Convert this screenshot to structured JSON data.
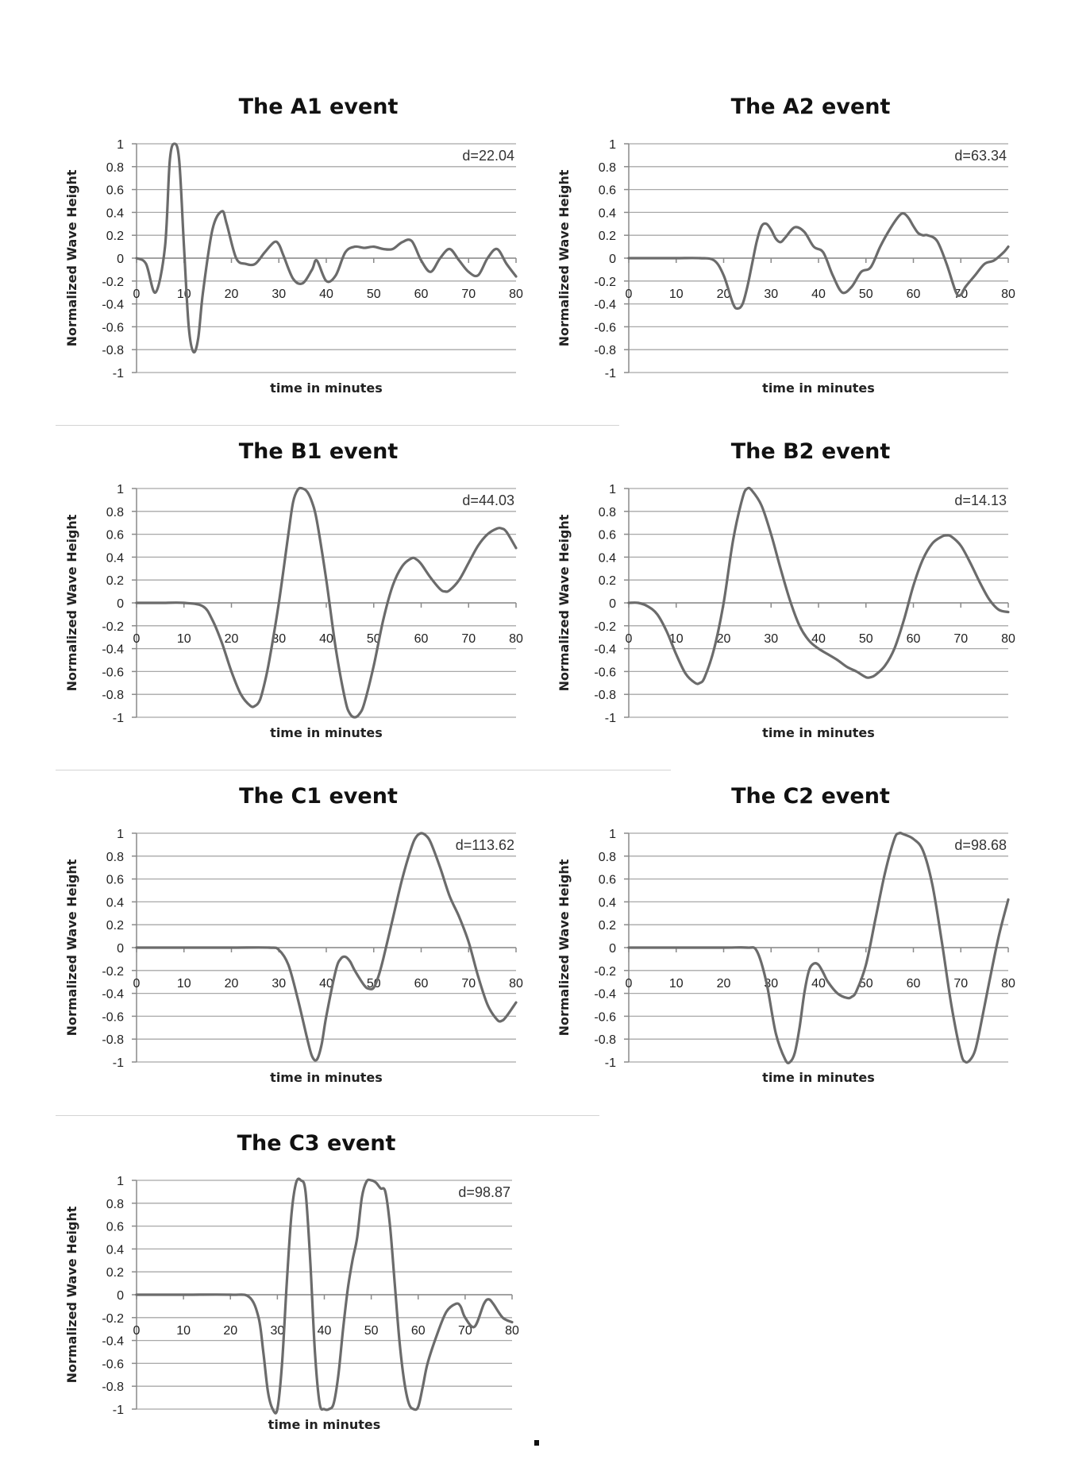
{
  "figure": {
    "footer_mark": "."
  },
  "chart_data": [
    {
      "type": "line",
      "title": "The A1 event",
      "xlabel": "time in minutes",
      "ylabel": "Normalized Wave Height",
      "annotation": "d=22.04",
      "xlim": [
        0,
        80
      ],
      "ylim": [
        -1,
        1
      ],
      "xticks": [
        0,
        10,
        20,
        30,
        40,
        50,
        60,
        70,
        80
      ],
      "yticks": [
        1,
        0.8,
        0.6,
        0.4,
        0.2,
        0,
        -0.2,
        -0.4,
        -0.6,
        -0.8,
        -1
      ],
      "grid": true,
      "series": [
        {
          "x": [
            0,
            2,
            4,
            6,
            7,
            8,
            9,
            10,
            11,
            12,
            13,
            14,
            16,
            18,
            19,
            21,
            23,
            25,
            27,
            29,
            30,
            31,
            33,
            35,
            37,
            38,
            40,
            42,
            44,
            46,
            48,
            50,
            52,
            54,
            56,
            58,
            60,
            62,
            64,
            66,
            68,
            70,
            72,
            74,
            76,
            78,
            80
          ],
          "y": [
            0,
            -0.05,
            -0.3,
            0.1,
            0.85,
            1,
            0.85,
            0.1,
            -0.6,
            -0.82,
            -0.7,
            -0.3,
            0.25,
            0.41,
            0.3,
            0,
            -0.05,
            -0.05,
            0.05,
            0.14,
            0.12,
            0.02,
            -0.18,
            -0.22,
            -0.1,
            -0.02,
            -0.2,
            -0.15,
            0.05,
            0.1,
            0.09,
            0.1,
            0.08,
            0.08,
            0.14,
            0.15,
            -0.02,
            -0.12,
            0,
            0.08,
            -0.02,
            -0.12,
            -0.15,
            0,
            0.08,
            -0.05,
            -0.16
          ]
        }
      ]
    },
    {
      "type": "line",
      "title": "The A2 event",
      "xlabel": "time in minutes",
      "ylabel": "Normalized Wave Height",
      "annotation": "d=63.34",
      "xlim": [
        0,
        80
      ],
      "ylim": [
        -1,
        1
      ],
      "xticks": [
        0,
        10,
        20,
        30,
        40,
        50,
        60,
        70,
        80
      ],
      "yticks": [
        1,
        0.8,
        0.6,
        0.4,
        0.2,
        0,
        -0.2,
        -0.4,
        -0.6,
        -0.8,
        -1
      ],
      "grid": true,
      "series": [
        {
          "x": [
            0,
            5,
            10,
            15,
            18,
            20,
            22,
            23,
            24,
            25,
            26,
            27,
            28,
            29,
            30,
            31,
            32,
            33,
            35,
            37,
            39,
            41,
            43,
            45,
            47,
            49,
            51,
            53,
            55,
            57,
            58,
            59,
            60,
            61,
            62,
            63,
            65,
            67,
            69,
            70,
            71,
            73,
            75,
            77,
            79,
            80
          ],
          "y": [
            0,
            0,
            0,
            0,
            -0.02,
            -0.15,
            -0.4,
            -0.44,
            -0.4,
            -0.25,
            -0.05,
            0.15,
            0.28,
            0.3,
            0.25,
            0.17,
            0.14,
            0.18,
            0.27,
            0.23,
            0.1,
            0.05,
            -0.15,
            -0.3,
            -0.25,
            -0.12,
            -0.08,
            0.1,
            0.25,
            0.37,
            0.39,
            0.35,
            0.28,
            0.22,
            0.2,
            0.2,
            0.15,
            -0.05,
            -0.3,
            -0.32,
            -0.25,
            -0.15,
            -0.05,
            -0.02,
            0.05,
            0.1
          ]
        }
      ]
    },
    {
      "type": "line",
      "title": "The B1 event",
      "xlabel": "time in minutes",
      "ylabel": "Normalized Wave Height",
      "annotation": "d=44.03",
      "xlim": [
        0,
        80
      ],
      "ylim": [
        -1,
        1
      ],
      "xticks": [
        0,
        10,
        20,
        30,
        40,
        50,
        60,
        70,
        80
      ],
      "yticks": [
        1,
        0.8,
        0.6,
        0.4,
        0.2,
        0,
        -0.2,
        -0.4,
        -0.6,
        -0.8,
        -1
      ],
      "grid": true,
      "series": [
        {
          "x": [
            0,
            5,
            10,
            14,
            16,
            18,
            20,
            22,
            24,
            25,
            26,
            27,
            28,
            30,
            32,
            33,
            34,
            35,
            36,
            37,
            38,
            40,
            42,
            44,
            45,
            46,
            47,
            48,
            50,
            52,
            54,
            56,
            58,
            59,
            60,
            62,
            64,
            65,
            66,
            68,
            70,
            72,
            74,
            76,
            77,
            78,
            80
          ],
          "y": [
            0,
            0,
            0,
            -0.03,
            -0.15,
            -0.35,
            -0.6,
            -0.8,
            -0.9,
            -0.9,
            -0.85,
            -0.7,
            -0.5,
            0,
            0.6,
            0.88,
            0.99,
            1,
            0.97,
            0.88,
            0.72,
            0.2,
            -0.4,
            -0.85,
            -0.97,
            -1,
            -0.97,
            -0.88,
            -0.55,
            -0.15,
            0.15,
            0.32,
            0.39,
            0.38,
            0.34,
            0.22,
            0.12,
            0.1,
            0.11,
            0.2,
            0.35,
            0.5,
            0.6,
            0.65,
            0.65,
            0.62,
            0.48
          ]
        }
      ]
    },
    {
      "type": "line",
      "title": "The B2 event",
      "xlabel": "time in minutes",
      "ylabel": "Normalized Wave Height",
      "annotation": "d=14.13",
      "xlim": [
        0,
        80
      ],
      "ylim": [
        -1,
        1
      ],
      "xticks": [
        0,
        10,
        20,
        30,
        40,
        50,
        60,
        70,
        80
      ],
      "yticks": [
        1,
        0.8,
        0.6,
        0.4,
        0.2,
        0,
        -0.2,
        -0.4,
        -0.6,
        -0.8,
        -1
      ],
      "grid": true,
      "series": [
        {
          "x": [
            0,
            2,
            4,
            6,
            8,
            10,
            12,
            14,
            15,
            16,
            18,
            20,
            22,
            24,
            25,
            26,
            28,
            30,
            32,
            34,
            36,
            38,
            40,
            42,
            44,
            46,
            48,
            50,
            51,
            52,
            54,
            56,
            58,
            60,
            62,
            64,
            66,
            67,
            68,
            70,
            72,
            74,
            76,
            78,
            80
          ],
          "y": [
            0,
            0,
            -0.03,
            -0.1,
            -0.25,
            -0.45,
            -0.62,
            -0.7,
            -0.7,
            -0.65,
            -0.4,
            0,
            0.55,
            0.92,
            1,
            0.98,
            0.85,
            0.6,
            0.3,
            0.02,
            -0.2,
            -0.33,
            -0.4,
            -0.45,
            -0.5,
            -0.56,
            -0.6,
            -0.65,
            -0.65,
            -0.63,
            -0.55,
            -0.4,
            -0.15,
            0.15,
            0.38,
            0.52,
            0.58,
            0.59,
            0.58,
            0.5,
            0.35,
            0.18,
            0.03,
            -0.06,
            -0.08
          ]
        }
      ]
    },
    {
      "type": "line",
      "title": "The C1 event",
      "xlabel": "time in minutes",
      "ylabel": "Normalized Wave Height",
      "annotation": "d=113.62",
      "xlim": [
        0,
        80
      ],
      "ylim": [
        -1,
        1
      ],
      "xticks": [
        0,
        10,
        20,
        30,
        40,
        50,
        60,
        70,
        80
      ],
      "yticks": [
        1,
        0.8,
        0.6,
        0.4,
        0.2,
        0,
        -0.2,
        -0.4,
        -0.6,
        -0.8,
        -1
      ],
      "grid": true,
      "series": [
        {
          "x": [
            0,
            10,
            20,
            28,
            30,
            32,
            34,
            36,
            37,
            38,
            39,
            40,
            42,
            43,
            44,
            45,
            46,
            48,
            49,
            50,
            51,
            52,
            54,
            56,
            58,
            59,
            60,
            61,
            62,
            64,
            66,
            68,
            70,
            72,
            74,
            76,
            77,
            78,
            80
          ],
          "y": [
            0,
            0,
            0,
            0,
            -0.02,
            -0.15,
            -0.45,
            -0.8,
            -0.95,
            -0.98,
            -0.85,
            -0.6,
            -0.2,
            -0.1,
            -0.08,
            -0.12,
            -0.2,
            -0.33,
            -0.36,
            -0.35,
            -0.25,
            -0.1,
            0.25,
            0.6,
            0.88,
            0.97,
            1,
            0.98,
            0.92,
            0.7,
            0.45,
            0.27,
            0.05,
            -0.25,
            -0.5,
            -0.63,
            -0.64,
            -0.6,
            -0.48
          ]
        }
      ]
    },
    {
      "type": "line",
      "title": "The C2 event",
      "xlabel": "time in minutes",
      "ylabel": "Normalized Wave Height",
      "annotation": "d=98.68",
      "xlim": [
        0,
        80
      ],
      "ylim": [
        -1,
        1
      ],
      "xticks": [
        0,
        10,
        20,
        30,
        40,
        50,
        60,
        70,
        80
      ],
      "yticks": [
        1,
        0.8,
        0.6,
        0.4,
        0.2,
        0,
        -0.2,
        -0.4,
        -0.6,
        -0.8,
        -1
      ],
      "grid": true,
      "series": [
        {
          "x": [
            0,
            10,
            20,
            25,
            27,
            29,
            31,
            33,
            34,
            35,
            36,
            37,
            38,
            39,
            40,
            41,
            42,
            44,
            46,
            47,
            48,
            50,
            52,
            54,
            56,
            57,
            58,
            60,
            62,
            64,
            66,
            68,
            70,
            71,
            72,
            73,
            74,
            76,
            78,
            80
          ],
          "y": [
            0,
            0,
            0,
            0,
            -0.03,
            -0.3,
            -0.75,
            -0.98,
            -1,
            -0.92,
            -0.7,
            -0.4,
            -0.2,
            -0.14,
            -0.15,
            -0.22,
            -0.3,
            -0.4,
            -0.44,
            -0.43,
            -0.38,
            -0.15,
            0.25,
            0.65,
            0.95,
            1,
            0.99,
            0.95,
            0.85,
            0.55,
            0.05,
            -0.5,
            -0.92,
            -1,
            -0.98,
            -0.9,
            -0.72,
            -0.3,
            0.1,
            0.42
          ]
        }
      ]
    },
    {
      "type": "line",
      "title": "The C3 event",
      "xlabel": "time in minutes",
      "ylabel": "Normalized Wave Height",
      "annotation": "d=98.87",
      "xlim": [
        0,
        80
      ],
      "ylim": [
        -1,
        1
      ],
      "xticks": [
        0,
        10,
        20,
        30,
        40,
        50,
        60,
        70,
        80
      ],
      "yticks": [
        1,
        0.8,
        0.6,
        0.4,
        0.2,
        0,
        -0.2,
        -0.4,
        -0.6,
        -0.8,
        -1
      ],
      "grid": true,
      "series": [
        {
          "x": [
            0,
            10,
            20,
            24,
            26,
            27,
            28,
            29,
            30,
            31,
            32,
            33,
            34,
            35,
            36,
            37,
            38,
            39,
            40,
            41,
            42,
            43,
            44,
            45,
            46,
            47,
            48,
            49,
            50,
            51,
            52,
            53,
            54,
            55,
            56,
            57,
            58,
            59,
            60,
            61,
            62,
            64,
            66,
            68,
            69,
            70,
            72,
            74,
            75,
            76,
            78,
            80
          ],
          "y": [
            0,
            0,
            0,
            -0.02,
            -0.2,
            -0.5,
            -0.85,
            -1,
            -1,
            -0.6,
            0.1,
            0.7,
            0.98,
            1,
            0.9,
            0.3,
            -0.5,
            -0.95,
            -1,
            -1,
            -0.95,
            -0.7,
            -0.3,
            0.05,
            0.3,
            0.5,
            0.85,
            0.99,
            1,
            0.98,
            0.93,
            0.9,
            0.6,
            0.1,
            -0.4,
            -0.75,
            -0.95,
            -1,
            -0.98,
            -0.8,
            -0.6,
            -0.35,
            -0.15,
            -0.08,
            -0.1,
            -0.2,
            -0.28,
            -0.08,
            -0.04,
            -0.08,
            -0.2,
            -0.24
          ]
        }
      ]
    }
  ]
}
